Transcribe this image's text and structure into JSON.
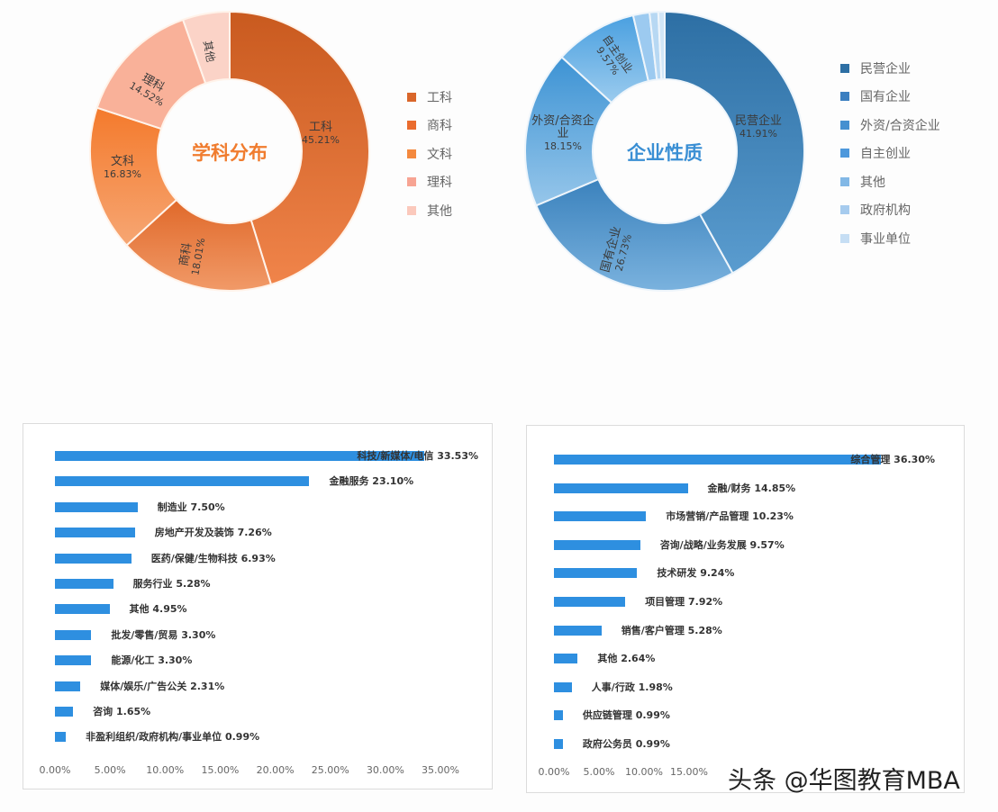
{
  "chart_data": [
    {
      "type": "pie",
      "subtype": "donut",
      "title": "学科分布",
      "categories": [
        "工科",
        "商科",
        "文科",
        "理科",
        "其他"
      ],
      "values": [
        45.21,
        18.01,
        16.83,
        14.52,
        5.43
      ],
      "labels": [
        "45.21%",
        "18.01%",
        "16.83%",
        "14.52%",
        ""
      ],
      "colors": [
        "#d9662a",
        "#e8773a",
        "#f28a47",
        "#f9b199",
        "#fbd3c7"
      ],
      "legend_position": "right"
    },
    {
      "type": "pie",
      "subtype": "donut",
      "title": "企业性质",
      "categories": [
        "民营企业",
        "国有企业",
        "外资/合资企业",
        "自主创业",
        "其他",
        "政府机构",
        "事业单位"
      ],
      "values": [
        41.91,
        26.73,
        18.15,
        9.57,
        1.9,
        1.0,
        0.74
      ],
      "labels": [
        "41.91%",
        "26.73%",
        "18.15%",
        "9.57%",
        "",
        "",
        ""
      ],
      "colors": [
        "#3579b0",
        "#4a8cc4",
        "#5ea3d8",
        "#73b3e6",
        "#9ccaf0",
        "#b7d8f3",
        "#d1e6f7"
      ],
      "legend_position": "right"
    },
    {
      "type": "bar",
      "orientation": "horizontal",
      "title": "",
      "categories": [
        "科技/新媒体/电信",
        "金融服务",
        "制造业",
        "房地产开发及装饰",
        "医药/保健/生物科技",
        "服务行业",
        "其他",
        "批发/零售/贸易",
        "能源/化工",
        "媒体/娱乐/广告公关",
        "咨询",
        "非盈利组织/政府机构/事业单位"
      ],
      "values": [
        33.53,
        23.1,
        7.5,
        7.26,
        6.93,
        5.28,
        4.95,
        3.3,
        3.3,
        2.31,
        1.65,
        0.99
      ],
      "xlim": [
        0,
        35
      ],
      "xticks": [
        "0.00%",
        "5.00%",
        "10.00%",
        "15.00%",
        "20.00%",
        "25.00%",
        "30.00%",
        "35.00%"
      ],
      "color": "#2e8fe0",
      "grid": false
    },
    {
      "type": "bar",
      "orientation": "horizontal",
      "title": "",
      "categories": [
        "综合管理",
        "金融/财务",
        "市场营销/产品管理",
        "咨询/战略/业务发展",
        "技术研发",
        "项目管理",
        "销售/客户管理",
        "其他",
        "人事/行政",
        "供应链管理",
        "政府公务员"
      ],
      "values": [
        36.3,
        14.85,
        10.23,
        9.57,
        9.24,
        7.92,
        5.28,
        2.64,
        1.98,
        0.99,
        0.99
      ],
      "xlim": [
        0,
        40
      ],
      "xticks": [
        "0.00%",
        "5.00%",
        "10.00%",
        "15.00%"
      ],
      "color": "#2e8fe0",
      "grid": false
    }
  ],
  "donut1": {
    "title": "学科分布",
    "labels": [
      {
        "name": "工科",
        "pct": "45.21%"
      },
      {
        "name": "商科",
        "pct": "18.01%"
      },
      {
        "name": "文科",
        "pct": "16.83%"
      },
      {
        "name": "理科",
        "pct": "14.52%"
      },
      {
        "name": "其他",
        "pct": ""
      }
    ],
    "legend": [
      "工科",
      "商科",
      "文科",
      "理科",
      "其他"
    ]
  },
  "donut2": {
    "title": "企业性质",
    "labels": [
      {
        "name": "民营企业",
        "pct": "41.91%"
      },
      {
        "name": "国有企业",
        "pct": "26.73%"
      },
      {
        "name": "外资/合资企业",
        "pct": "18.15%"
      },
      {
        "name": "自主创业",
        "pct": "9.57%"
      }
    ],
    "legend": [
      "民营企业",
      "国有企业",
      "外资/合资企业",
      "自主创业",
      "其他",
      "政府机构",
      "事业单位"
    ]
  },
  "bars1": {
    "rows": [
      {
        "label": "科技/新媒体/电信 33.53%"
      },
      {
        "label": "金融服务 23.10%"
      },
      {
        "label": "制造业 7.50%"
      },
      {
        "label": "房地产开发及装饰 7.26%"
      },
      {
        "label": "医药/保健/生物科技 6.93%"
      },
      {
        "label": "服务行业 5.28%"
      },
      {
        "label": "其他 4.95%"
      },
      {
        "label": "批发/零售/贸易 3.30%"
      },
      {
        "label": "能源/化工 3.30%"
      },
      {
        "label": "媒体/娱乐/广告公关 2.31%"
      },
      {
        "label": "咨询 1.65%"
      },
      {
        "label": "非盈利组织/政府机构/事业单位 0.99%"
      }
    ],
    "ticks": [
      "0.00%",
      "5.00%",
      "10.00%",
      "15.00%",
      "20.00%",
      "25.00%",
      "30.00%",
      "35.00%"
    ]
  },
  "bars2": {
    "rows": [
      {
        "label": "综合管理 36.30%"
      },
      {
        "label": "金融/财务 14.85%"
      },
      {
        "label": "市场营销/产品管理 10.23%"
      },
      {
        "label": "咨询/战略/业务发展 9.57%"
      },
      {
        "label": "技术研发 9.24%"
      },
      {
        "label": "项目管理 7.92%"
      },
      {
        "label": "销售/客户管理 5.28%"
      },
      {
        "label": "其他 2.64%"
      },
      {
        "label": "人事/行政 1.98%"
      },
      {
        "label": "供应链管理 0.99%"
      },
      {
        "label": "政府公务员 0.99%"
      }
    ],
    "ticks": [
      "0.00%",
      "5.00%",
      "10.00%",
      "15.00%"
    ]
  },
  "watermark": "头条 @华图教育MBA",
  "colors": {
    "orange_title": "#f07c2e",
    "blue_title": "#3a8fd4",
    "bar_blue": "#2e8fe0"
  }
}
